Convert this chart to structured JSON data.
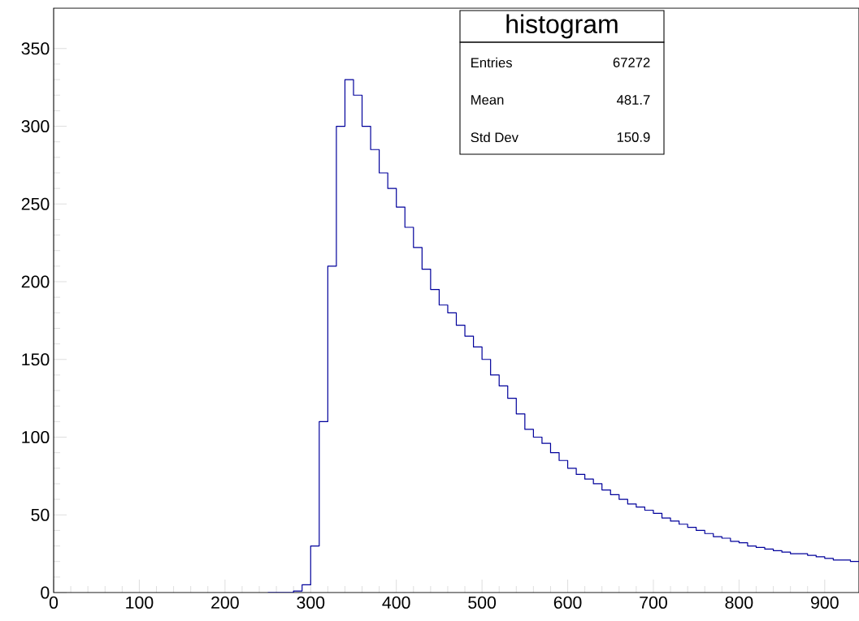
{
  "chart_data": {
    "type": "histogram",
    "title": "histogram",
    "color": "#00009b",
    "bins": [
      250,
      260,
      270,
      280,
      290,
      300,
      310,
      320,
      330,
      340,
      350,
      360,
      370,
      380,
      390,
      400,
      410,
      420,
      430,
      440,
      450,
      460,
      470,
      480,
      490,
      500,
      510,
      520,
      530,
      540,
      550,
      560,
      570,
      580,
      590,
      600,
      610,
      620,
      630,
      640,
      650,
      660,
      670,
      680,
      690,
      700,
      710,
      720,
      730,
      740,
      750,
      760,
      770,
      780,
      790,
      800,
      810,
      820,
      830,
      840,
      850,
      860,
      870,
      880,
      890,
      900,
      910,
      920,
      930,
      940
    ],
    "values": [
      0,
      0,
      0,
      1,
      5,
      30,
      110,
      210,
      300,
      330,
      320,
      300,
      285,
      270,
      260,
      248,
      235,
      222,
      208,
      195,
      185,
      180,
      172,
      165,
      158,
      150,
      140,
      133,
      125,
      115,
      105,
      100,
      96,
      90,
      85,
      80,
      76,
      73,
      70,
      66,
      63,
      60,
      57,
      55,
      53,
      51,
      48,
      46,
      44,
      42,
      40,
      38,
      36,
      35,
      33,
      32,
      30,
      29,
      28,
      27,
      26,
      25,
      25,
      24,
      23,
      22,
      21,
      21,
      20
    ],
    "xlim": [
      0,
      940
    ],
    "ylim": [
      0,
      376
    ],
    "xticks": [
      0,
      100,
      200,
      300,
      400,
      500,
      600,
      700,
      800,
      900
    ],
    "yticks": [
      0,
      50,
      100,
      150,
      200,
      250,
      300,
      350
    ],
    "annotations": [
      "Entries",
      "67272",
      "Mean",
      "481.7",
      "Std Dev",
      "150.9"
    ]
  }
}
